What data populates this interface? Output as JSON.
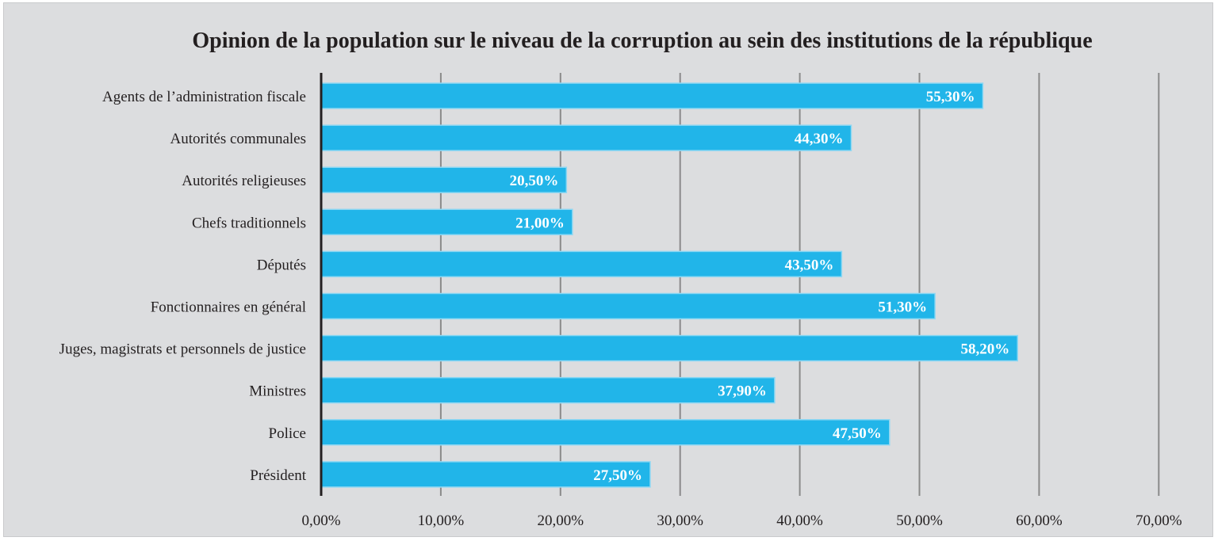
{
  "chart_data": {
    "type": "bar",
    "orientation": "horizontal",
    "title": "Opinion de la population sur le niveau de la corruption au sein des institutions de la république",
    "categories": [
      "Agents de l’administration fiscale",
      "Autorités communales",
      "Autorités religieuses",
      "Chefs traditionnels",
      "Députés",
      "Fonctionnaires en général",
      "Juges, magistrats et personnels de justice",
      "Ministres",
      "Police",
      "Président"
    ],
    "values": [
      55.3,
      44.3,
      20.5,
      21.0,
      43.5,
      51.3,
      58.2,
      37.9,
      47.5,
      27.5
    ],
    "value_labels": [
      "55,30%",
      "44,30%",
      "20,50%",
      "21,00%",
      "43,50%",
      "51,30%",
      "58,20%",
      "37,90%",
      "47,50%",
      "27,50%"
    ],
    "xlim": [
      0,
      70
    ],
    "x_ticks": [
      "0,00%",
      "10,00%",
      "20,00%",
      "30,00%",
      "40,00%",
      "50,00%",
      "60,00%",
      "70,00%"
    ],
    "grid": true,
    "legend": "none",
    "colors": {
      "bar": "#21b5e9",
      "bar_edge": "#8fd8f3",
      "grid": "#8a8a8a",
      "axis": "#231f20",
      "background": "#dcdddf"
    }
  }
}
